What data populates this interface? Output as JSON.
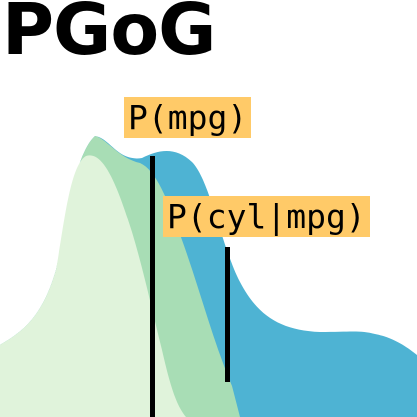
{
  "logo": {
    "text": "PGoG"
  },
  "labels": {
    "marginal": "P(mpg)",
    "conditional": "P(cyl|mpg)"
  },
  "colors": {
    "background": "#ffffff",
    "blue_density": "#4eb3d3",
    "mid_green_density": "#a8ddb5",
    "light_green_density": "#e0f3db",
    "label_highlight": "#ffca68",
    "marker_line": "#000000"
  }
}
